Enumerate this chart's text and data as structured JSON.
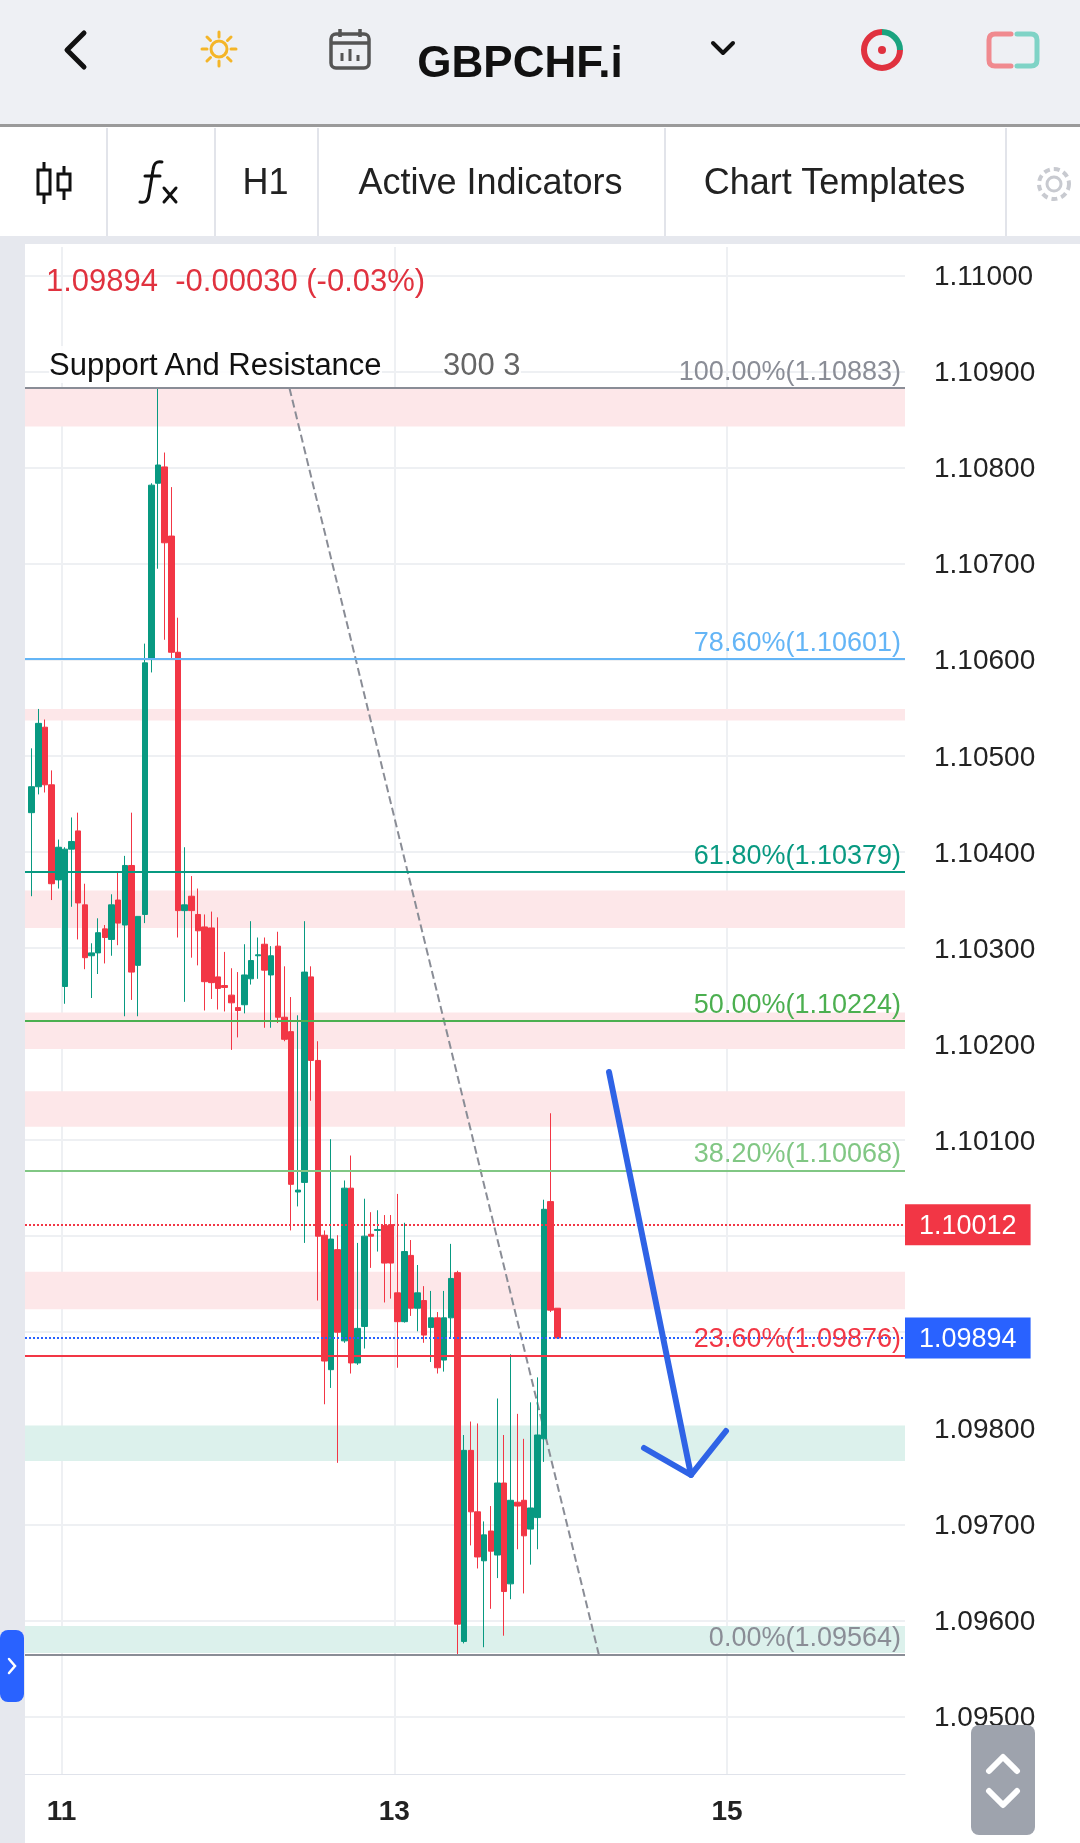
{
  "chart_data": {
    "type": "candlestick",
    "title": "GBPCHF.i",
    "annotations": [
      "H1",
      "Active Indicators",
      "Chart Templates",
      "1.09894  -0.00030 (-0.03%)",
      "Support And Resistance",
      "300 3"
    ],
    "x": [
      10.82,
      10.86,
      10.9,
      10.94,
      10.98,
      11.02,
      11.06,
      11.1,
      11.14,
      11.18,
      11.22,
      11.26,
      11.3,
      11.34,
      11.38,
      11.42,
      11.46,
      11.5,
      11.54,
      11.58,
      11.62,
      11.66,
      11.7,
      11.74,
      11.78,
      11.82,
      11.86,
      11.9,
      11.94,
      11.98,
      12.02,
      12.06,
      12.1,
      12.14,
      12.18,
      12.22,
      12.26,
      12.3,
      12.34,
      12.38,
      12.42,
      12.46,
      12.5,
      12.54,
      12.58,
      12.62,
      12.66,
      12.7,
      12.74,
      12.78,
      12.82,
      12.86,
      12.9,
      12.94,
      12.98,
      13.02,
      13.06,
      13.1,
      13.14,
      13.18,
      13.22,
      13.26,
      13.3,
      13.34,
      13.38,
      13.42,
      13.46,
      13.5,
      13.54,
      13.58,
      13.62,
      13.66,
      13.7,
      13.74,
      13.78,
      13.82,
      13.86,
      13.9,
      13.94,
      13.98
    ],
    "ohlc": [
      [
        1.10441,
        1.10508,
        1.10354,
        1.10468
      ],
      [
        1.10468,
        1.10549,
        1.1046,
        1.10534
      ],
      [
        1.1053,
        1.10538,
        1.10462,
        1.1047
      ],
      [
        1.1047,
        1.10485,
        1.1035,
        1.10367
      ],
      [
        1.10371,
        1.10413,
        1.10362,
        1.10405
      ],
      [
        1.1026,
        1.10405,
        1.10242,
        1.10403
      ],
      [
        1.10403,
        1.10436,
        1.10343,
        1.10411
      ],
      [
        1.10422,
        1.10441,
        1.10309,
        1.10347
      ],
      [
        1.10345,
        1.10367,
        1.10278,
        1.1029
      ],
      [
        1.10292,
        1.10305,
        1.10248,
        1.10295
      ],
      [
        1.10295,
        1.10331,
        1.10273,
        1.10316
      ],
      [
        1.1032,
        1.10324,
        1.10284,
        1.10311
      ],
      [
        1.10309,
        1.10356,
        1.10292,
        1.10345
      ],
      [
        1.1035,
        1.10379,
        1.10303,
        1.10326
      ],
      [
        1.10324,
        1.10396,
        1.10229,
        1.10386
      ],
      [
        1.10386,
        1.10441,
        1.10246,
        1.10275
      ],
      [
        1.10282,
        1.10333,
        1.10229,
        1.10333
      ],
      [
        1.10335,
        1.10617,
        1.10326,
        1.10597
      ],
      [
        1.10602,
        1.10784,
        1.10587,
        1.10782
      ],
      [
        1.10784,
        1.10883,
        1.10695,
        1.10803
      ],
      [
        1.10801,
        1.10816,
        1.10621,
        1.10722
      ],
      [
        1.10729,
        1.1078,
        1.10602,
        1.10608
      ],
      [
        1.10608,
        1.10644,
        1.10311,
        1.10339
      ],
      [
        1.10339,
        1.10405,
        1.10244,
        1.10345
      ],
      [
        1.10354,
        1.10375,
        1.1029,
        1.10339
      ],
      [
        1.10335,
        1.10362,
        1.10282,
        1.10318
      ],
      [
        1.10322,
        1.10335,
        1.10235,
        1.10265
      ],
      [
        1.10321,
        1.10338,
        1.10247,
        1.10264
      ],
      [
        1.1027,
        1.10332,
        1.10236,
        1.10258
      ],
      [
        1.10261,
        1.10296,
        1.10234,
        1.10259
      ],
      [
        1.10251,
        1.10279,
        1.10194,
        1.10243
      ],
      [
        1.10238,
        1.10275,
        1.10207,
        1.10235
      ],
      [
        1.10241,
        1.10304,
        1.10232,
        1.10272
      ],
      [
        1.10268,
        1.10328,
        1.10262,
        1.10287
      ],
      [
        1.10292,
        1.10311,
        1.10268,
        1.10293
      ],
      [
        1.10304,
        1.10311,
        1.10217,
        1.10277
      ],
      [
        1.10272,
        1.10302,
        1.10217,
        1.10292
      ],
      [
        1.10302,
        1.10317,
        1.10222,
        1.10228
      ],
      [
        1.10228,
        1.10281,
        1.10203,
        1.10205
      ],
      [
        1.10213,
        1.10249,
        1.10006,
        1.10054
      ],
      [
        1.10046,
        1.1023,
        1.10031,
        1.10048
      ],
      [
        1.10056,
        1.10328,
        1.09993,
        1.10275
      ],
      [
        1.1027,
        1.10281,
        1.10141,
        1.10183
      ],
      [
        1.10183,
        1.10203,
        1.09933,
        1.1
      ],
      [
        1.10001,
        1.10006,
        1.09825,
        1.0987
      ],
      [
        1.09861,
        1.10101,
        1.09842,
        1.09997
      ],
      [
        1.09986,
        1.10001,
        1.09764,
        1.099
      ],
      [
        1.09891,
        1.10058,
        1.09889,
        1.1005
      ],
      [
        1.1005,
        1.10084,
        1.09857,
        1.09868
      ],
      [
        1.09868,
        1.09993,
        1.09866,
        1.09904
      ],
      [
        1.09906,
        1.10039,
        1.09883,
        1.1
      ],
      [
        1.10002,
        1.10025,
        1.09967,
        1.1
      ],
      [
        1.10006,
        1.10027,
        1.09984,
        1.10007
      ],
      [
        1.10011,
        1.10022,
        1.09931,
        1.09972
      ],
      [
        1.10012,
        1.10022,
        1.09935,
        1.09972
      ],
      [
        1.09941,
        1.10044,
        1.09863,
        1.09911
      ],
      [
        1.09911,
        1.10014,
        1.0991,
        1.09984
      ],
      [
        1.0998,
        1.09996,
        1.09917,
        1.09925
      ],
      [
        1.09925,
        1.0997,
        1.09901,
        1.09941
      ],
      [
        1.09933,
        1.09948,
        1.09889,
        1.09897
      ],
      [
        1.09905,
        1.09943,
        1.09869,
        1.09915
      ],
      [
        1.09915,
        1.09921,
        1.09857,
        1.09863
      ],
      [
        1.09871,
        1.09943,
        1.09859,
        1.09915
      ],
      [
        1.09915,
        1.09992,
        1.09893,
        1.09956
      ],
      [
        1.09962,
        1.09964,
        1.09564,
        1.09596
      ],
      [
        1.09578,
        1.09793,
        1.09576,
        1.09777
      ],
      [
        1.09777,
        1.09807,
        1.09678,
        1.09713
      ],
      [
        1.09713,
        1.09805,
        1.09654,
        1.09666
      ],
      [
        1.09662,
        1.09703,
        1.09572,
        1.09689
      ],
      [
        1.09693,
        1.09719,
        1.09612,
        1.09672
      ],
      [
        1.09668,
        1.09831,
        1.09644,
        1.09743
      ],
      [
        1.09743,
        1.09793,
        1.09584,
        1.0963
      ],
      [
        1.09638,
        1.09877,
        1.09622,
        1.09725
      ],
      [
        1.09723,
        1.09815,
        1.09674,
        1.09719
      ],
      [
        1.09725,
        1.09789,
        1.09628,
        1.09688
      ],
      [
        1.09695,
        1.09827,
        1.09658,
        1.09717
      ],
      [
        1.09707,
        1.09853,
        1.09674,
        1.09793
      ],
      [
        1.09789,
        1.10038,
        1.09765,
        1.10028
      ],
      [
        1.10036,
        1.10128,
        1.09921,
        1.09923
      ],
      [
        1.09925,
        1.09925,
        1.09893,
        1.09894
      ]
    ],
    "series": [
      {
        "type": "line",
        "x": [
          12.37,
          14.23
        ],
        "values": [
          1.10883,
          1.09564
        ],
        "color": "#8a8d96",
        "line_style": "dashed",
        "marker": "none"
      }
    ],
    "xlim": [
      10.78,
      16.07
    ],
    "xticks": [
      11,
      13,
      15
    ],
    "ylim": [
      1.0944,
      1.1103
    ],
    "yticks": [
      {
        "value": 1.095,
        "label": "1.09500"
      },
      {
        "value": 1.096,
        "label": "1.09600"
      },
      {
        "value": 1.097,
        "label": "1.09700"
      },
      {
        "value": 1.098,
        "label": "1.09800"
      },
      {
        "value": 1.099,
        "label": null
      },
      {
        "value": 1.1,
        "label": null
      },
      {
        "value": 1.101,
        "label": "1.10100"
      },
      {
        "value": 1.102,
        "label": "1.10200"
      },
      {
        "value": 1.103,
        "label": "1.10300"
      },
      {
        "value": 1.104,
        "label": "1.10400"
      },
      {
        "value": 1.105,
        "label": "1.10500"
      },
      {
        "value": 1.106,
        "label": "1.10600"
      },
      {
        "value": 1.107,
        "label": "1.10700"
      },
      {
        "value": 1.108,
        "label": "1.10800"
      },
      {
        "value": 1.109,
        "label": "1.10900"
      },
      {
        "value": 1.11,
        "label": "1.11000"
      }
    ],
    "grid": true,
    "ref_lines": [
      {
        "axis": "y",
        "value": 1.10883,
        "label": "100.00%(1.10883)",
        "color": "#8a8d96",
        "line_style": "solid"
      },
      {
        "axis": "y",
        "value": 1.10601,
        "label": "78.60%(1.10601)",
        "color": "#64b5f6",
        "line_style": "solid"
      },
      {
        "axis": "y",
        "value": 1.10379,
        "label": "61.80%(1.10379)",
        "color": "#089981",
        "line_style": "solid"
      },
      {
        "axis": "y",
        "value": 1.10224,
        "label": "50.00%(1.10224)",
        "color": "#4caf50",
        "line_style": "solid"
      },
      {
        "axis": "y",
        "value": 1.10068,
        "label": "38.20%(1.10068)",
        "color": "#81c784",
        "line_style": "solid"
      },
      {
        "axis": "y",
        "value": 1.09876,
        "label": "23.60%(1.09876)",
        "color": "#f23645",
        "line_style": "solid"
      },
      {
        "axis": "y",
        "value": 1.09564,
        "label": "0.00%(1.09564)",
        "color": "#8a8d96",
        "line_style": "solid"
      },
      {
        "axis": "y",
        "value": 1.10012,
        "label": "1.10012",
        "color": "#f23645",
        "line_style": "dotted"
      },
      {
        "axis": "y",
        "value": 1.09894,
        "label": "1.09894",
        "color": "#2962ff",
        "line_style": "dotted"
      }
    ],
    "bands": [
      {
        "axis": "y",
        "from": 1.10843,
        "to": 1.10883,
        "color": "#fde7e9"
      },
      {
        "axis": "y",
        "from": 1.10537,
        "to": 1.10549,
        "color": "#fde7e9"
      },
      {
        "axis": "y",
        "from": 1.10321,
        "to": 1.1036,
        "color": "#fde7e9"
      },
      {
        "axis": "y",
        "from": 1.10195,
        "to": 1.10233,
        "color": "#fde7e9"
      },
      {
        "axis": "y",
        "from": 1.10114,
        "to": 1.10151,
        "color": "#fde7e9"
      },
      {
        "axis": "y",
        "from": 1.09924,
        "to": 1.09963,
        "color": "#fde7e9"
      },
      {
        "axis": "y",
        "from": 1.09766,
        "to": 1.09803,
        "color": "#dcf1ec"
      },
      {
        "axis": "y",
        "from": 1.09566,
        "to": 1.09594,
        "color": "#dcf1ec"
      }
    ]
  }
}
